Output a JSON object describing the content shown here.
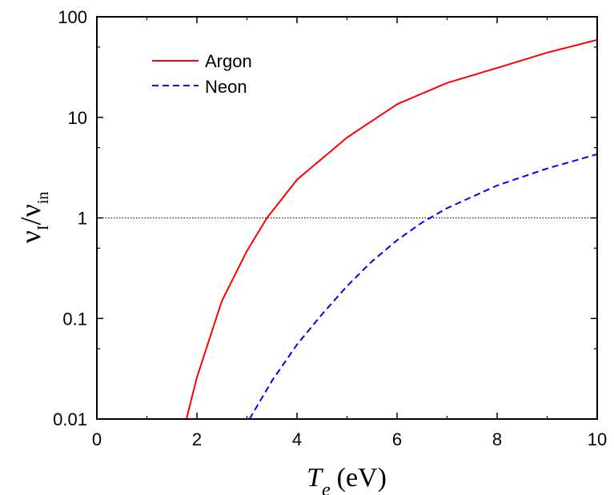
{
  "chart_data": {
    "type": "line",
    "title": "",
    "xlabel": {
      "symbol": "T",
      "subscript": "e",
      "unit": "(eV)"
    },
    "ylabel": {
      "numerator_symbol": "ν",
      "numerator_subscript": "I",
      "slash": "/",
      "denominator_symbol": "ν",
      "denominator_subscript": "in"
    },
    "xlim": [
      0,
      10
    ],
    "ylim": [
      0.01,
      100
    ],
    "yscale": "log",
    "xticks": [
      "0",
      "2",
      "4",
      "6",
      "8",
      "10"
    ],
    "yticks": [
      "0.01",
      "0.1",
      "1",
      "10",
      "100"
    ],
    "grid": false,
    "legend_position": "top-left",
    "reference_line": {
      "y": 1,
      "style": "dotted",
      "color": "#000000"
    },
    "series": [
      {
        "name": "Argon",
        "color": "#ff0000",
        "style": "solid",
        "x": [
          1.79,
          2.0,
          2.5,
          3.0,
          3.4,
          4.0,
          5.0,
          6.0,
          7.0,
          8.0,
          9.0,
          10.0
        ],
        "y": [
          0.01,
          0.026,
          0.15,
          0.47,
          1.0,
          2.4,
          6.3,
          13.5,
          22,
          31,
          44,
          59
        ]
      },
      {
        "name": "Neon",
        "color": "#0000ff",
        "style": "dashed",
        "x": [
          3.05,
          3.5,
          4.0,
          4.5,
          5.0,
          5.5,
          6.0,
          6.5,
          7.0,
          8.0,
          9.0,
          10.0
        ],
        "y": [
          0.01,
          0.024,
          0.055,
          0.11,
          0.21,
          0.37,
          0.6,
          0.9,
          1.25,
          2.1,
          3.1,
          4.3
        ]
      }
    ]
  }
}
